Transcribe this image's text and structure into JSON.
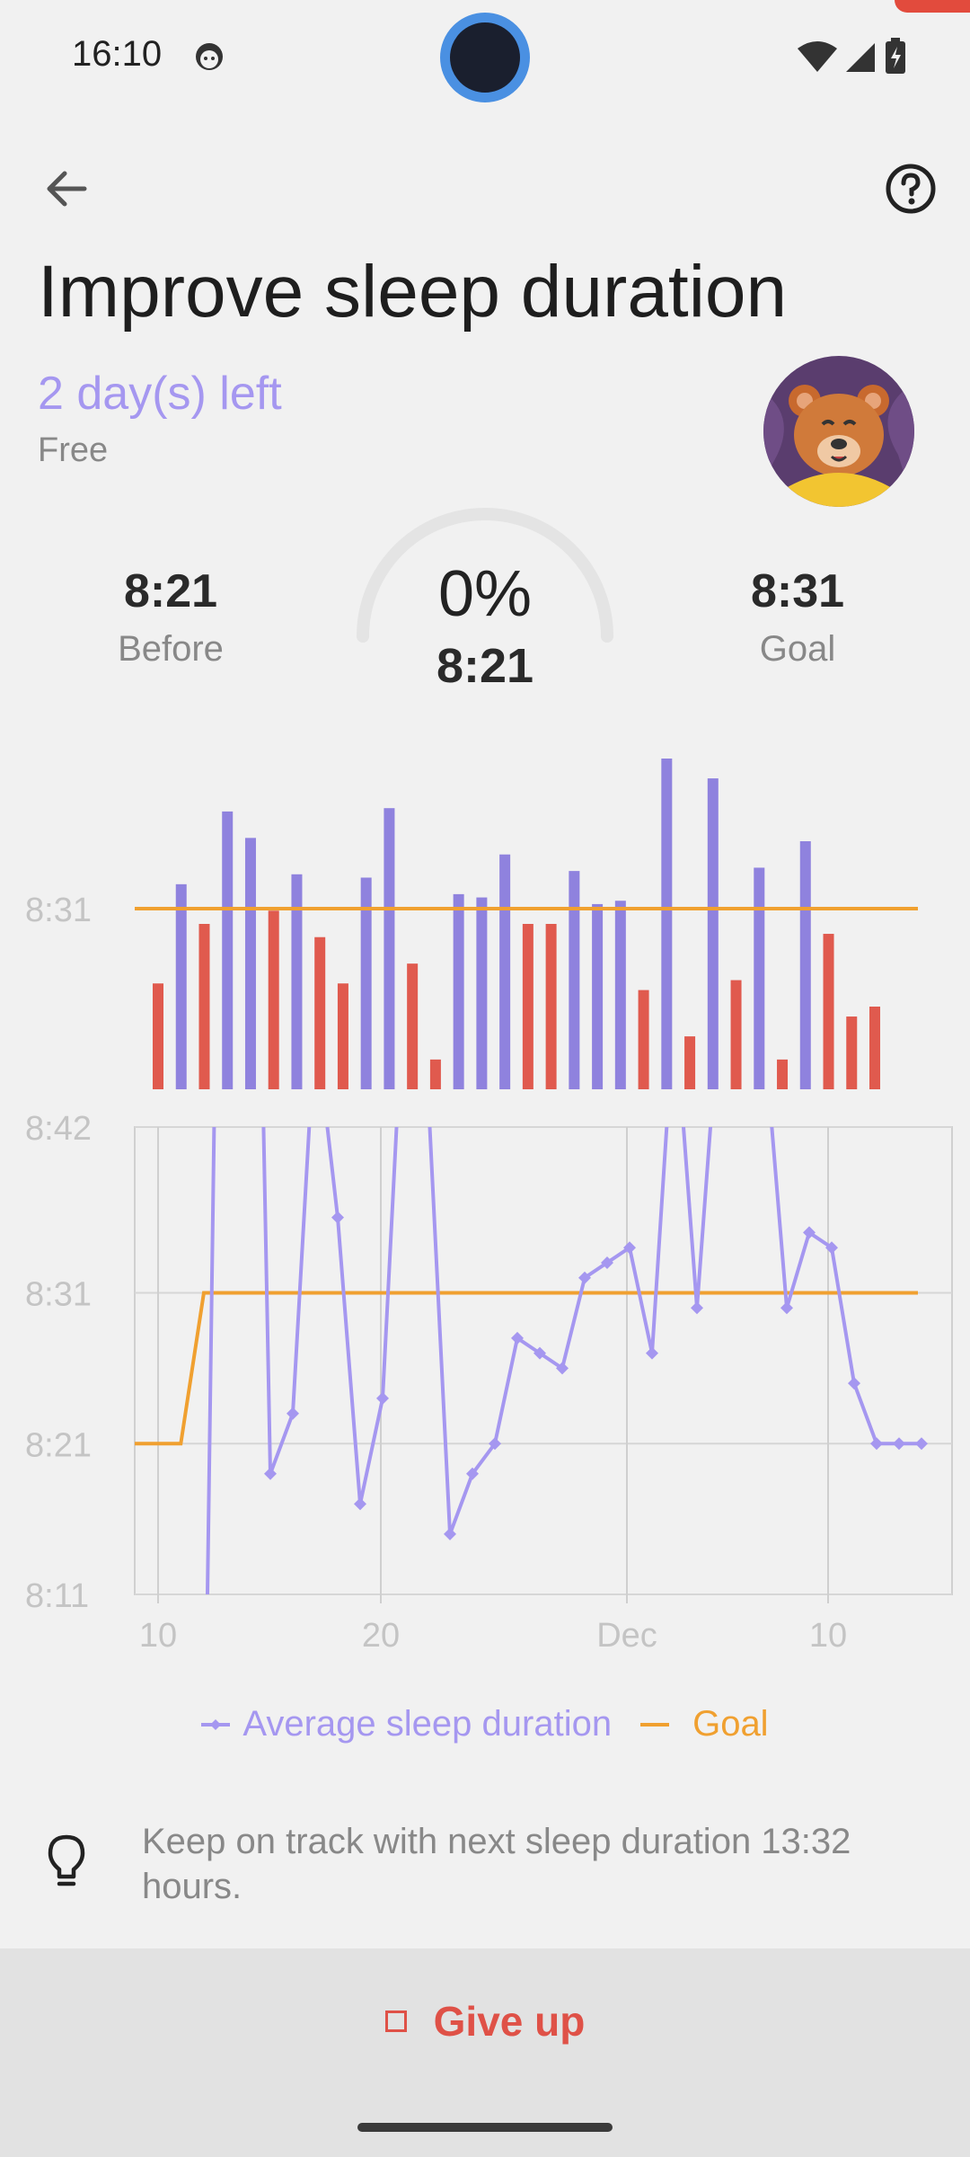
{
  "status_bar": {
    "time": "16:10"
  },
  "header": {
    "title": "Improve sleep duration"
  },
  "challenge": {
    "days_left": "2 day(s) left",
    "price": "Free"
  },
  "stats": {
    "before": {
      "value": "8:21",
      "label": "Before"
    },
    "progress": {
      "percent": "0%",
      "value": "8:21"
    },
    "goal": {
      "value": "8:31",
      "label": "Goal"
    }
  },
  "chart_data": {
    "type": "line",
    "top_panel": {
      "type": "bar",
      "ytick": "8:31",
      "colors": {
        "above": "#8f82de",
        "below": "#e05a4e",
        "goal": "#f0a030"
      },
      "bars": [
        {
          "v": 0.32,
          "above": false
        },
        {
          "v": 0.62,
          "above": true
        },
        {
          "v": 0.5,
          "above": false
        },
        {
          "v": 0.84,
          "above": true
        },
        {
          "v": 0.76,
          "above": true
        },
        {
          "v": 0.54,
          "above": false
        },
        {
          "v": 0.65,
          "above": true
        },
        {
          "v": 0.46,
          "above": false
        },
        {
          "v": 0.32,
          "above": false
        },
        {
          "v": 0.64,
          "above": true
        },
        {
          "v": 0.85,
          "above": true
        },
        {
          "v": 0.38,
          "above": false
        },
        {
          "v": 0.09,
          "above": false
        },
        {
          "v": 0.59,
          "above": true
        },
        {
          "v": 0.58,
          "above": true
        },
        {
          "v": 0.71,
          "above": true
        },
        {
          "v": 0.5,
          "above": false
        },
        {
          "v": 0.5,
          "above": false
        },
        {
          "v": 0.66,
          "above": true
        },
        {
          "v": 0.56,
          "above": true
        },
        {
          "v": 0.57,
          "above": true
        },
        {
          "v": 0.3,
          "above": false
        },
        {
          "v": 1.0,
          "above": true
        },
        {
          "v": 0.16,
          "above": false
        },
        {
          "v": 0.94,
          "above": true
        },
        {
          "v": 0.33,
          "above": false
        },
        {
          "v": 0.67,
          "above": true
        },
        {
          "v": 0.09,
          "above": false
        },
        {
          "v": 0.75,
          "above": true
        },
        {
          "v": 0.47,
          "above": false
        },
        {
          "v": 0.22,
          "above": false
        },
        {
          "v": 0.25,
          "above": false
        }
      ]
    },
    "yticks": [
      "8:42",
      "8:31",
      "8:21",
      "8:11"
    ],
    "xticks": [
      "10",
      "20",
      "Dec",
      "10"
    ],
    "series": [
      {
        "name": "Average sleep duration",
        "color": "#a597f0",
        "values": [
          null,
          null,
          7.9,
          8.95,
          8.95,
          8.19,
          8.23,
          8.49,
          8.36,
          8.17,
          8.24,
          8.53,
          8.45,
          8.15,
          8.19,
          8.21,
          8.28,
          8.27,
          8.26,
          8.32,
          8.33,
          8.34,
          8.27,
          8.5,
          8.3,
          8.5,
          8.45,
          8.48,
          8.3,
          8.35,
          8.34,
          8.25,
          8.21,
          8.21,
          8.21
        ]
      },
      {
        "name": "Goal",
        "color": "#f0a030",
        "values": [
          8.21,
          8.21,
          8.21,
          8.31,
          8.31,
          8.31,
          8.31,
          8.31,
          8.31,
          8.31,
          8.31,
          8.31,
          8.31,
          8.31,
          8.31,
          8.31,
          8.31,
          8.31,
          8.31,
          8.31,
          8.31,
          8.31,
          8.31,
          8.31,
          8.31,
          8.31,
          8.31,
          8.31,
          8.31,
          8.31,
          8.31,
          8.31,
          8.31,
          8.31,
          8.31
        ]
      }
    ]
  },
  "legend": {
    "series": "Average sleep duration",
    "goal": "Goal"
  },
  "tip": {
    "text": "Keep on track with next sleep duration 13:32 hours."
  },
  "footer": {
    "give_up": "Give up"
  }
}
